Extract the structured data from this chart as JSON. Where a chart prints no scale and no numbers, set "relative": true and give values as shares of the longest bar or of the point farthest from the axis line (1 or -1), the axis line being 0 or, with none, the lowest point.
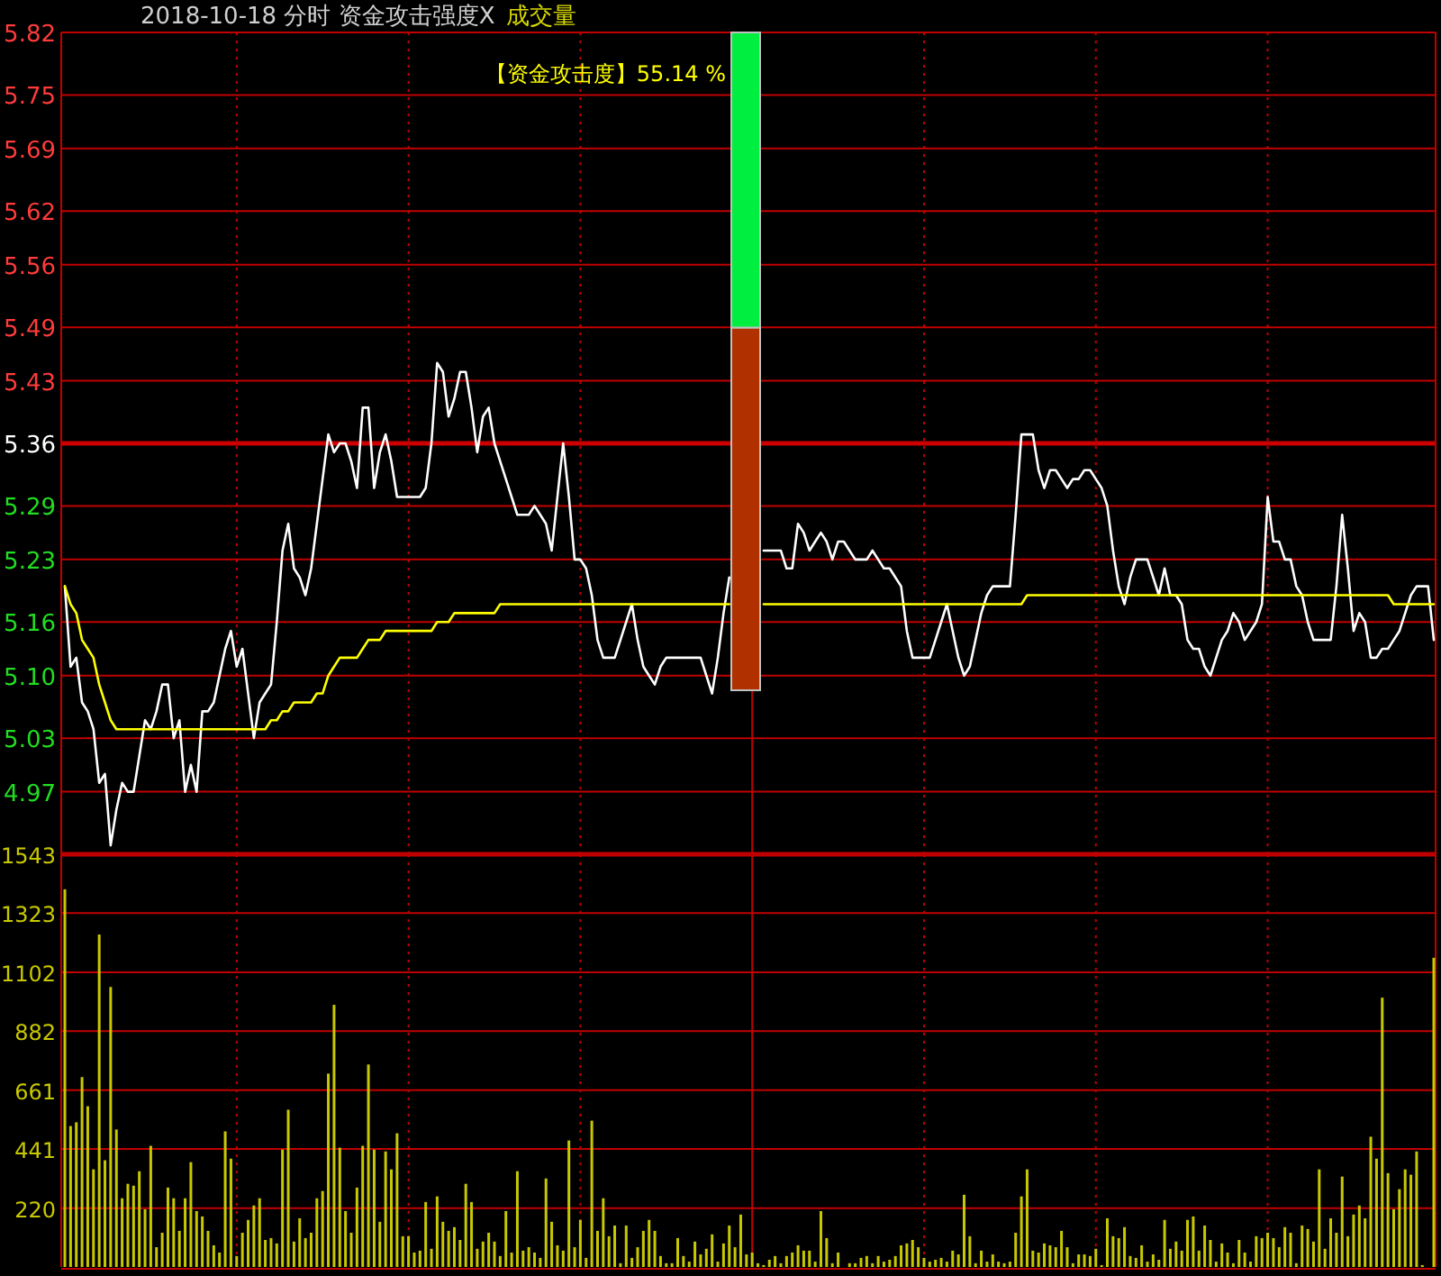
{
  "chart_data": [
    {
      "type": "line",
      "title": "2018-10-18 分时 资金攻击强度X",
      "subtitle": "成交量",
      "tick_labels": "y",
      "grid": true,
      "categories": [
        null,
        null,
        null,
        null,
        null,
        null,
        null,
        null,
        null,
        null,
        null,
        null,
        null,
        null,
        null,
        null,
        null,
        null,
        null,
        null,
        null,
        null,
        null,
        null,
        null,
        null,
        null,
        null,
        null,
        null,
        null,
        null,
        null,
        null,
        null,
        null,
        null,
        null,
        null,
        null,
        null,
        null,
        null,
        null,
        null,
        null,
        null,
        null,
        null,
        null,
        null,
        null,
        null,
        null,
        null,
        null,
        null,
        null,
        null,
        null,
        null,
        null,
        null,
        null,
        null,
        null,
        null,
        null,
        null,
        null,
        null,
        null,
        null,
        null,
        null,
        null,
        null,
        null,
        null,
        null,
        null,
        null,
        null,
        null,
        null,
        null,
        null,
        null,
        null,
        null,
        null,
        null,
        null,
        null,
        null,
        null,
        null,
        null,
        null,
        null,
        null,
        null,
        null,
        null,
        null,
        null,
        null,
        null,
        null,
        null,
        null,
        null,
        null,
        null,
        null,
        null,
        null,
        null,
        null,
        null,
        null,
        null,
        null,
        null,
        null,
        null,
        null,
        null,
        null,
        null,
        null,
        null,
        null,
        null,
        null,
        null,
        null,
        null,
        null,
        null,
        null,
        null,
        null,
        null,
        null,
        null,
        null,
        null,
        null,
        null,
        null,
        null,
        null,
        null,
        null,
        null,
        null,
        null,
        null,
        null,
        null,
        null,
        null,
        null,
        null,
        null,
        null,
        null,
        null,
        null,
        null,
        null,
        null,
        null,
        null,
        null,
        null,
        null,
        null,
        null,
        null,
        null,
        null,
        null,
        null,
        null,
        null,
        null,
        null,
        null,
        null,
        null,
        null,
        null,
        null,
        null,
        null,
        null,
        null,
        null,
        null,
        null,
        null,
        null,
        null,
        null,
        null,
        null,
        null,
        null,
        null,
        null,
        null,
        null,
        null,
        null,
        null,
        null,
        null,
        null,
        null,
        null,
        null,
        null,
        null,
        null,
        null,
        null,
        null,
        null,
        null,
        null,
        null,
        null,
        null,
        null,
        null,
        null,
        null,
        null
      ],
      "ylim": [
        4.9,
        5.82
      ],
      "yticks": [
        5.82,
        5.75,
        5.69,
        5.62,
        5.56,
        5.49,
        5.43,
        5.36,
        5.29,
        5.23,
        5.16,
        {
          "value": 5.1,
          "label": "5.10"
        },
        5.03,
        4.97
      ],
      "ref_lines": [
        {
          "axis": "y",
          "value": 5.36,
          "color": "#cc0000"
        }
      ],
      "series": [
        {
          "color": "#ffffff",
          "values": [
            5.2,
            5.11,
            5.12,
            5.07,
            5.06,
            5.04,
            4.98,
            4.99,
            4.91,
            4.95,
            4.98,
            4.97,
            4.97,
            5.01,
            5.05,
            5.04,
            5.06,
            5.09,
            5.09,
            5.03,
            5.05,
            4.97,
            5.0,
            4.97,
            5.06,
            5.06,
            5.07,
            5.1,
            5.13,
            5.15,
            5.11,
            5.13,
            5.08,
            5.03,
            5.07,
            5.08,
            5.09,
            5.16,
            5.24,
            5.27,
            5.22,
            5.21,
            5.19,
            5.22,
            5.27,
            5.32,
            5.37,
            5.35,
            5.36,
            5.36,
            5.34,
            5.31,
            5.4,
            5.4,
            5.31,
            5.35,
            5.37,
            5.34,
            5.3,
            5.3,
            5.3,
            5.3,
            5.3,
            5.31,
            5.36,
            5.45,
            5.44,
            5.39,
            5.41,
            5.44,
            5.44,
            5.4,
            5.35,
            5.39,
            5.4,
            5.36,
            5.34,
            5.32,
            5.3,
            5.28,
            5.28,
            5.28,
            5.29,
            5.28,
            5.27,
            5.24,
            5.3,
            5.36,
            5.3,
            5.23,
            5.23,
            5.22,
            5.19,
            5.14,
            5.12,
            5.12,
            5.12,
            5.14,
            5.16,
            5.18,
            5.14,
            5.11,
            5.1,
            5.09,
            5.11,
            5.12,
            5.12,
            5.12,
            5.12,
            5.12,
            5.12,
            5.12,
            5.1,
            5.08,
            5.12,
            5.17,
            5.21,
            null,
            null,
            null,
            null,
            null,
            5.24,
            5.24,
            5.24,
            5.24,
            5.22,
            5.22,
            5.27,
            5.26,
            5.24,
            5.25,
            5.26,
            5.25,
            5.23,
            5.25,
            5.25,
            5.24,
            5.23,
            5.23,
            5.23,
            5.24,
            5.23,
            5.22,
            5.22,
            5.21,
            5.2,
            5.15,
            5.12,
            5.12,
            5.12,
            5.12,
            5.14,
            5.16,
            5.18,
            5.15,
            5.12,
            5.1,
            5.11,
            5.14,
            5.17,
            5.19,
            5.2,
            5.2,
            5.2,
            5.2,
            5.28,
            5.37,
            5.37,
            5.37,
            5.33,
            5.31,
            5.33,
            5.33,
            5.32,
            5.31,
            5.32,
            5.32,
            5.33,
            5.33,
            5.32,
            5.31,
            5.29,
            5.24,
            5.2,
            5.18,
            5.21,
            5.23,
            5.23,
            5.23,
            5.21,
            5.19,
            5.22,
            5.19,
            5.19,
            5.18,
            5.14,
            5.13,
            5.13,
            5.11,
            5.1,
            5.12,
            5.14,
            5.15,
            5.17,
            5.16,
            5.14,
            5.15,
            5.16,
            5.18,
            5.3,
            5.25,
            5.25,
            5.23,
            5.23,
            5.2,
            5.19,
            5.16,
            5.14,
            5.14,
            5.14,
            5.14,
            5.2,
            5.28,
            5.22,
            5.15,
            5.17,
            5.16,
            5.12,
            5.12,
            5.13,
            5.13,
            5.14,
            5.15,
            5.17,
            5.19,
            5.2,
            5.2,
            5.2,
            5.14
          ]
        },
        {
          "color": "#ffff00",
          "values": [
            5.2,
            5.18,
            5.17,
            5.14,
            5.13,
            5.12,
            5.09,
            5.07,
            5.05,
            5.04,
            5.04,
            5.04,
            5.04,
            5.04,
            5.04,
            5.04,
            5.04,
            5.04,
            5.04,
            5.04,
            5.04,
            5.04,
            5.04,
            5.04,
            5.04,
            5.04,
            5.04,
            5.04,
            5.04,
            5.04,
            5.04,
            5.04,
            5.04,
            5.04,
            5.04,
            5.04,
            5.05,
            5.05,
            5.06,
            5.06,
            5.07,
            5.07,
            5.07,
            5.07,
            5.08,
            5.08,
            5.1,
            5.11,
            5.12,
            5.12,
            5.12,
            5.12,
            5.13,
            5.14,
            5.14,
            5.14,
            5.15,
            5.15,
            5.15,
            5.15,
            5.15,
            5.15,
            5.15,
            5.15,
            5.15,
            5.16,
            5.16,
            5.16,
            5.17,
            5.17,
            5.17,
            5.17,
            5.17,
            5.17,
            5.17,
            5.17,
            5.18,
            5.18,
            5.18,
            5.18,
            5.18,
            5.18,
            5.18,
            5.18,
            5.18,
            5.18,
            5.18,
            5.18,
            5.18,
            5.18,
            5.18,
            5.18,
            5.18,
            5.18,
            5.18,
            5.18,
            5.18,
            5.18,
            5.18,
            5.18,
            5.18,
            5.18,
            5.18,
            5.18,
            5.18,
            5.18,
            5.18,
            5.18,
            5.18,
            5.18,
            5.18,
            5.18,
            5.18,
            5.18,
            5.18,
            5.18,
            5.18,
            null,
            null,
            null,
            null,
            null,
            5.18,
            5.18,
            5.18,
            5.18,
            5.18,
            5.18,
            5.18,
            5.18,
            5.18,
            5.18,
            5.18,
            5.18,
            5.18,
            5.18,
            5.18,
            5.18,
            5.18,
            5.18,
            5.18,
            5.18,
            5.18,
            5.18,
            5.18,
            5.18,
            5.18,
            5.18,
            5.18,
            5.18,
            5.18,
            5.18,
            5.18,
            5.18,
            5.18,
            5.18,
            5.18,
            5.18,
            5.18,
            5.18,
            5.18,
            5.18,
            5.18,
            5.18,
            5.18,
            5.18,
            5.18,
            5.18,
            5.19,
            5.19,
            5.19,
            5.19,
            5.19,
            5.19,
            5.19,
            5.19,
            5.19,
            5.19,
            5.19,
            5.19,
            5.19,
            5.19,
            5.19,
            5.19,
            5.19,
            5.19,
            5.19,
            5.19,
            5.19,
            5.19,
            5.19,
            5.19,
            5.19,
            5.19,
            5.19,
            5.19,
            5.19,
            5.19,
            5.19,
            5.19,
            5.19,
            5.19,
            5.19,
            5.19,
            5.19,
            5.19,
            5.19,
            5.19,
            5.19,
            5.19,
            5.19,
            5.19,
            5.19,
            5.19,
            5.19,
            5.19,
            5.19,
            5.19,
            5.19,
            5.19,
            5.19,
            5.19,
            5.19,
            5.19,
            5.19,
            5.19,
            5.19,
            5.19,
            5.19,
            5.19,
            5.19,
            5.19,
            5.18,
            5.18,
            5.18,
            5.18,
            5.18,
            5.18,
            5.18,
            5.18
          ]
        }
      ]
    },
    {
      "type": "bar",
      "tick_labels": "y",
      "grid": true,
      "categories": [
        null,
        null,
        null,
        null,
        null,
        null,
        null,
        null,
        null,
        null,
        null,
        null,
        null,
        null,
        null,
        null,
        null,
        null,
        null,
        null,
        null,
        null,
        null,
        null,
        null,
        null,
        null,
        null,
        null,
        null,
        null,
        null,
        null,
        null,
        null,
        null,
        null,
        null,
        null,
        null,
        null,
        null,
        null,
        null,
        null,
        null,
        null,
        null,
        null,
        null,
        null,
        null,
        null,
        null,
        null,
        null,
        null,
        null,
        null,
        null,
        null,
        null,
        null,
        null,
        null,
        null,
        null,
        null,
        null,
        null,
        null,
        null,
        null,
        null,
        null,
        null,
        null,
        null,
        null,
        null,
        null,
        null,
        null,
        null,
        null,
        null,
        null,
        null,
        null,
        null,
        null,
        null,
        null,
        null,
        null,
        null,
        null,
        null,
        null,
        null,
        null,
        null,
        null,
        null,
        null,
        null,
        null,
        null,
        null,
        null,
        null,
        null,
        null,
        null,
        null,
        null,
        null,
        null,
        null,
        null,
        null,
        null,
        null,
        null,
        null,
        null,
        null,
        null,
        null,
        null,
        null,
        null,
        null,
        null,
        null,
        null,
        null,
        null,
        null,
        null,
        null,
        null,
        null,
        null,
        null,
        null,
        null,
        null,
        null,
        null,
        null,
        null,
        null,
        null,
        null,
        null,
        null,
        null,
        null,
        null,
        null,
        null,
        null,
        null,
        null,
        null,
        null,
        null,
        null,
        null,
        null,
        null,
        null,
        null,
        null,
        null,
        null,
        null,
        null,
        null,
        null,
        null,
        null,
        null,
        null,
        null,
        null,
        null,
        null,
        null,
        null,
        null,
        null,
        null,
        null,
        null,
        null,
        null,
        null,
        null,
        null,
        null,
        null,
        null,
        null,
        null,
        null,
        null,
        null,
        null,
        null,
        null,
        null,
        null,
        null,
        null,
        null,
        null,
        null,
        null,
        null,
        null,
        null,
        null,
        null,
        null,
        null,
        null,
        null,
        null,
        null,
        null,
        null,
        null,
        null,
        null,
        null,
        null,
        null,
        null
      ],
      "ylim": [
        0,
        1543
      ],
      "yticks": [
        220,
        441,
        661,
        882,
        1102,
        1323,
        1543
      ],
      "color": "#c8c800",
      "values": [
        1412,
        527,
        541,
        710,
        601,
        365,
        1243,
        399,
        1047,
        514,
        257,
        311,
        304,
        358,
        216,
        453,
        74,
        128,
        297,
        257,
        135,
        257,
        392,
        209,
        189,
        135,
        81,
        54,
        507,
        405,
        41,
        128,
        176,
        230,
        257,
        101,
        108,
        88,
        439,
        588,
        95,
        182,
        108,
        128,
        257,
        284,
        723,
        980,
        446,
        209,
        128,
        297,
        453,
        757,
        439,
        169,
        432,
        365,
        500,
        115,
        115,
        54,
        61,
        243,
        68,
        264,
        169,
        135,
        149,
        101,
        311,
        243,
        68,
        95,
        128,
        95,
        41,
        209,
        54,
        358,
        61,
        74,
        54,
        34,
        331,
        169,
        81,
        61,
        473,
        74,
        176,
        34,
        547,
        135,
        257,
        115,
        155,
        14,
        155,
        34,
        74,
        135,
        176,
        135,
        41,
        14,
        14,
        108,
        41,
        20,
        95,
        47,
        68,
        122,
        20,
        88,
        155,
        74,
        196,
        47,
        54,
        14,
        7,
        27,
        41,
        14,
        41,
        54,
        81,
        61,
        61,
        20,
        209,
        108,
        14,
        54,
        0,
        14,
        14,
        34,
        41,
        14,
        41,
        20,
        27,
        41,
        81,
        88,
        101,
        74,
        34,
        20,
        27,
        34,
        20,
        61,
        47,
        270,
        115,
        14,
        61,
        20,
        47,
        20,
        14,
        20,
        128,
        264,
        365,
        61,
        54,
        88,
        81,
        74,
        135,
        74,
        14,
        47,
        47,
        41,
        68,
        7,
        182,
        115,
        108,
        149,
        41,
        34,
        81,
        20,
        47,
        27,
        176,
        68,
        95,
        61,
        176,
        189,
        61,
        155,
        101,
        20,
        88,
        54,
        14,
        101,
        54,
        20,
        115,
        108,
        128,
        108,
        74,
        149,
        128,
        14,
        155,
        142,
        95,
        365,
        68,
        182,
        128,
        338,
        115,
        196,
        230,
        182,
        487,
        405,
        1007,
        351,
        216,
        291,
        365,
        345,
        432,
        7,
        0,
        1156
      ]
    },
    {
      "type": "bar",
      "stacked": true,
      "relative": true,
      "categories": [
        null
      ],
      "annotations": [
        "【资金攻击度】55.14 %"
      ],
      "series": [
        {
          "color": "#b03000",
          "values": [
            0.5514
          ]
        },
        {
          "color": "#00ee40",
          "values": [
            0.4486
          ]
        }
      ]
    }
  ]
}
